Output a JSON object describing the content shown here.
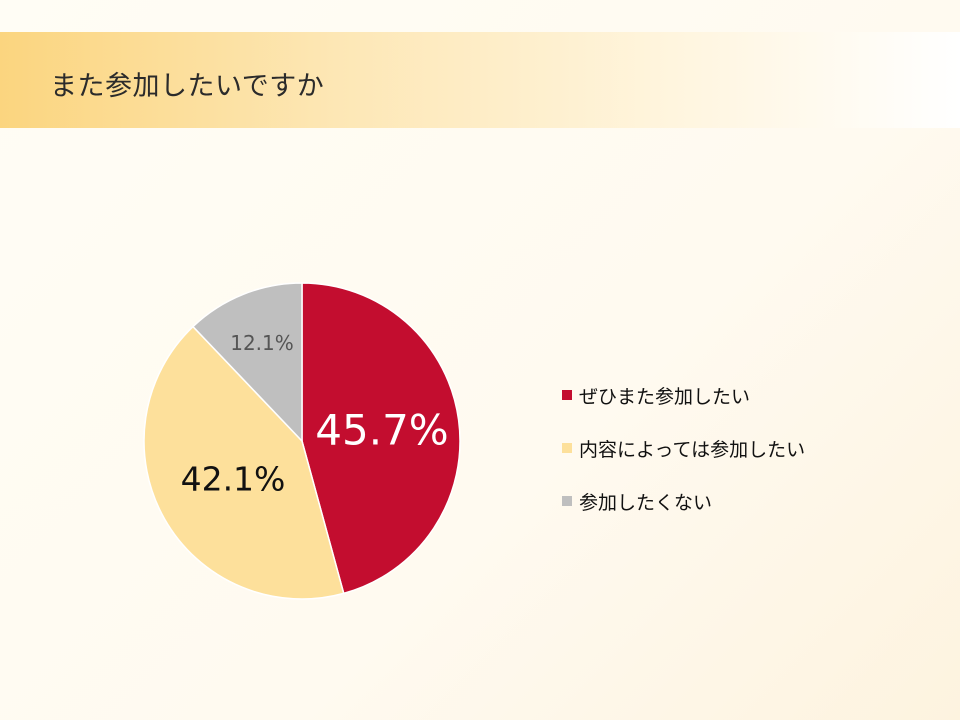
{
  "slide": {
    "title": "また参加したいですか"
  },
  "chart_data": {
    "type": "pie",
    "categories": [
      "ぜひまた参加したい",
      "内容によっては参加したい",
      "参加したくない"
    ],
    "values": [
      45.7,
      42.1,
      12.1
    ],
    "data_labels": [
      "45.7%",
      "42.1%",
      "12.1%"
    ],
    "colors": [
      "#c30d2f",
      "#fde09b",
      "#bfbfbf"
    ],
    "label_colors": [
      "#ffffff",
      "#111111",
      "#555555"
    ],
    "start_angle": "12 o'clock",
    "direction": "clockwise",
    "legend_position": "right"
  }
}
